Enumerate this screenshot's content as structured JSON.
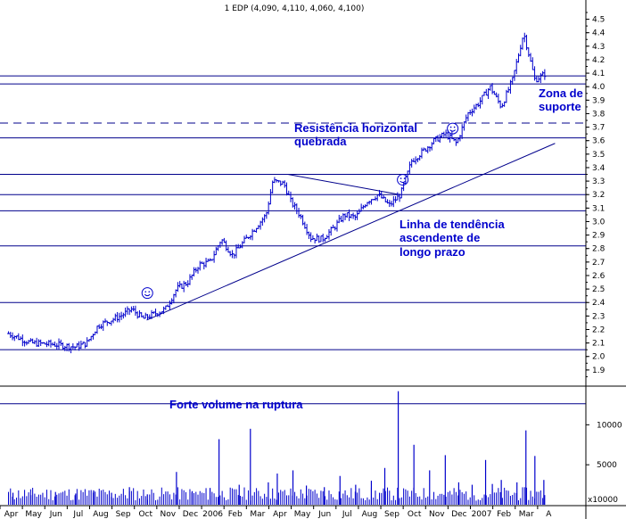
{
  "chart_data": {
    "type": "ohlc",
    "title": "1 EDP (4,090, 4,110, 4,060, 4,100)",
    "price_axis": {
      "ylim": [
        1.8,
        4.55
      ],
      "ticks": [
        "1.9",
        "2.0",
        "2.1",
        "2.2",
        "2.3",
        "2.4",
        "2.5",
        "2.6",
        "2.7",
        "2.8",
        "2.9",
        "3.0",
        "3.1",
        "3.2",
        "3.3",
        "3.4",
        "3.5",
        "3.6",
        "3.7",
        "3.8",
        "3.9",
        "4.0",
        "4.1",
        "4.2",
        "4.3",
        "4.4",
        "4.5"
      ]
    },
    "volume_axis": {
      "ylim": [
        0,
        14500
      ],
      "ticks": [
        "5000",
        "10000"
      ],
      "scale_label": "x10000"
    },
    "months": [
      "Apr",
      "May",
      "Jun",
      "Jul",
      "Aug",
      "Sep",
      "Oct",
      "Nov",
      "Dec",
      "2006",
      "Feb",
      "Mar",
      "Apr",
      "May",
      "Jun",
      "Jul",
      "Aug",
      "Sep",
      "Oct",
      "Nov",
      "Dec",
      "2007",
      "Feb",
      "Mar",
      "A"
    ],
    "close_series": [
      [
        0,
        2.17
      ],
      [
        1,
        2.1
      ],
      [
        2,
        2.09
      ],
      [
        3,
        2.07
      ],
      [
        3.5,
        2.1
      ],
      [
        4,
        2.23
      ],
      [
        5,
        2.3
      ],
      [
        5.5,
        2.35
      ],
      [
        6,
        2.28
      ],
      [
        7,
        2.35
      ],
      [
        7.5,
        2.5
      ],
      [
        8,
        2.55
      ],
      [
        8.5,
        2.68
      ],
      [
        9,
        2.7
      ],
      [
        9.5,
        2.87
      ],
      [
        10,
        2.75
      ],
      [
        10.5,
        2.85
      ],
      [
        11,
        2.95
      ],
      [
        11.5,
        3.05
      ],
      [
        11.8,
        3.3
      ],
      [
        12.3,
        3.28
      ],
      [
        12.6,
        3.15
      ],
      [
        13,
        3.05
      ],
      [
        13.5,
        2.88
      ],
      [
        14,
        2.87
      ],
      [
        14.5,
        2.95
      ],
      [
        15,
        3.05
      ],
      [
        15.5,
        3.03
      ],
      [
        16,
        3.15
      ],
      [
        16.5,
        3.2
      ],
      [
        17,
        3.12
      ],
      [
        17.5,
        3.2
      ],
      [
        18,
        3.45
      ],
      [
        18.5,
        3.52
      ],
      [
        19,
        3.6
      ],
      [
        19.5,
        3.65
      ],
      [
        20,
        3.58
      ],
      [
        20.5,
        3.8
      ],
      [
        21,
        3.88
      ],
      [
        21.5,
        4.0
      ],
      [
        22,
        3.85
      ],
      [
        22.5,
        4.05
      ],
      [
        23,
        4.4
      ],
      [
        23.5,
        4.05
      ],
      [
        24,
        4.1
      ]
    ],
    "volume_series": [
      [
        0.2,
        1500
      ],
      [
        1.0,
        1200
      ],
      [
        2.1,
        1600
      ],
      [
        3.0,
        1400
      ],
      [
        3.8,
        1800
      ],
      [
        4.6,
        1500
      ],
      [
        5.4,
        2200
      ],
      [
        6.2,
        1300
      ],
      [
        7.5,
        4100
      ],
      [
        8.2,
        1700
      ],
      [
        9.0,
        2100
      ],
      [
        9.4,
        8200
      ],
      [
        10.3,
        2500
      ],
      [
        10.8,
        9500
      ],
      [
        11.6,
        2800
      ],
      [
        12.0,
        3900
      ],
      [
        12.7,
        4300
      ],
      [
        13.3,
        2400
      ],
      [
        14.1,
        2200
      ],
      [
        14.8,
        3600
      ],
      [
        15.5,
        2500
      ],
      [
        16.2,
        3000
      ],
      [
        16.8,
        4600
      ],
      [
        17.4,
        14200
      ],
      [
        18.1,
        7500
      ],
      [
        18.8,
        4300
      ],
      [
        19.5,
        6200
      ],
      [
        20.1,
        2800
      ],
      [
        20.7,
        2500
      ],
      [
        21.3,
        5600
      ],
      [
        21.6,
        2600
      ],
      [
        22.0,
        3100
      ],
      [
        22.7,
        2800
      ],
      [
        23.1,
        9300
      ],
      [
        23.5,
        6100
      ],
      [
        23.9,
        3100
      ]
    ],
    "horizontal_lines": [
      1.65,
      2.05,
      2.4,
      2.82,
      3.08,
      3.2,
      3.35,
      3.62,
      4.02,
      4.08
    ],
    "dashed_line": 3.73,
    "trendlines": [
      {
        "from": [
          6.17,
          2.27
        ],
        "to": [
          24.4,
          3.58
        ]
      },
      {
        "from": [
          12.47,
          3.35
        ],
        "to": [
          17.47,
          3.2
        ]
      }
    ],
    "smileys": [
      {
        "x": 6.2,
        "y": 2.47
      },
      {
        "x": 17.6,
        "y": 3.31
      },
      {
        "x": 19.83,
        "y": 3.69
      }
    ],
    "annotations": {
      "resistance_line1": "Resistência horizontal",
      "resistance_line2": "quebrada",
      "trend_line1": "Linha de tendência",
      "trend_line2": "ascendente de",
      "trend_line3": "longo prazo",
      "support_line1": "Zona de",
      "support_line2": "suporte",
      "volume_note": "Forte volume na ruptura"
    },
    "colors": {
      "bars": "#0000cc",
      "lines": "#00008b",
      "annotation_text": "#0000cc",
      "smiley": "#0000cc"
    }
  }
}
